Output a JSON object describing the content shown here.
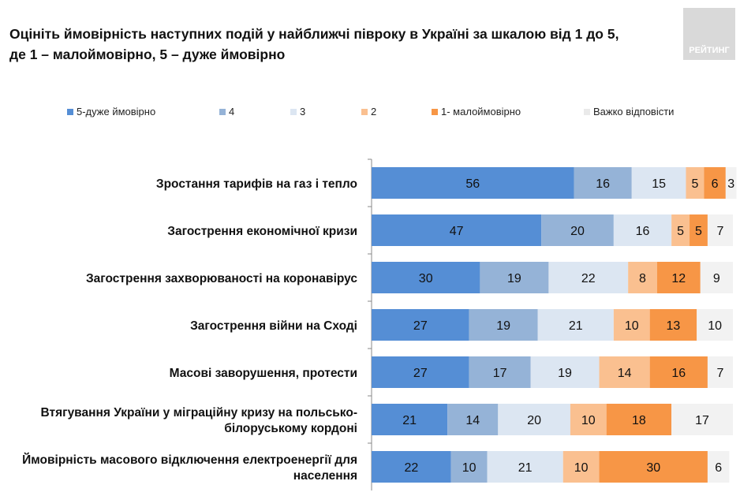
{
  "title_line1": "Оцініть ймовірність наступних подій у найближчі півроку в Україні за шкалою від 1 до 5,",
  "title_line2": "де 1 – малоймовірно, 5 – дуже ймовірно",
  "logo_text": "РЕЙТИНГ",
  "chart_data": {
    "type": "bar",
    "orientation": "horizontal",
    "stacked": true,
    "title": "Оцініть ймовірність наступних подій у найближчі півроку в Україні за шкалою від 1 до 5, де 1 – малоймовірно, 5 – дуже ймовірно",
    "legend_position": "top",
    "categories": [
      [
        "Зростання тарифів на газ і тепло"
      ],
      [
        "Загострення економічної кризи"
      ],
      [
        "Загострення захворюваності на коронавірус"
      ],
      [
        "Загострення війни на Сході"
      ],
      [
        "Масові заворушення, протести"
      ],
      [
        "Втягування України у міграційну кризу на польсько-",
        "білоруському кордоні"
      ],
      [
        "Ймовірність масового відключення електроенергії для",
        "населення"
      ]
    ],
    "series": [
      {
        "name": "5-дуже ймовірно",
        "color": "#558ed5",
        "values": [
          56,
          47,
          30,
          27,
          27,
          21,
          22
        ]
      },
      {
        "name": "4",
        "color": "#95b3d7",
        "values": [
          16,
          20,
          19,
          19,
          17,
          14,
          10
        ]
      },
      {
        "name": "3",
        "color": "#dce6f2",
        "values": [
          15,
          16,
          22,
          21,
          19,
          20,
          21
        ]
      },
      {
        "name": "2",
        "color": "#fac090",
        "values": [
          5,
          5,
          8,
          10,
          14,
          10,
          10
        ]
      },
      {
        "name": "1- малоймовірно",
        "color": "#f79646",
        "values": [
          6,
          5,
          12,
          13,
          16,
          18,
          30
        ]
      },
      {
        "name": "Важко відповісти",
        "color": "#f2f2f2",
        "values": [
          3,
          7,
          9,
          10,
          7,
          17,
          6
        ]
      }
    ]
  }
}
